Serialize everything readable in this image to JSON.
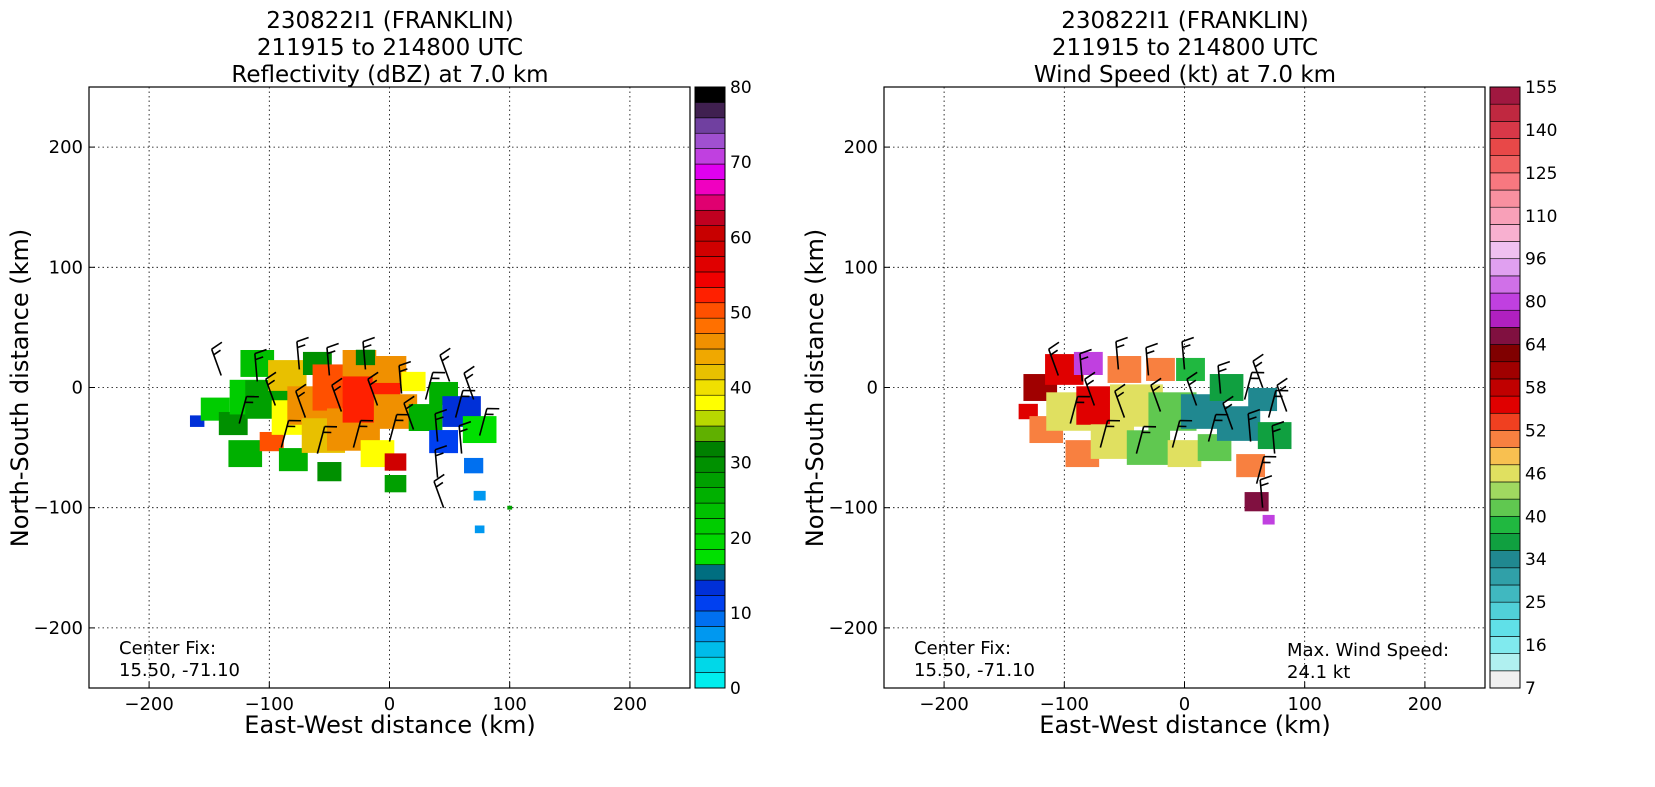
{
  "chart_data": [
    {
      "type": "heatmap",
      "title": [
        "230822I1 (FRANKLIN)",
        "211915 to 214800 UTC",
        "Reflectivity (dBZ) at 7.0 km"
      ],
      "xlabel": "East-West distance (km)",
      "ylabel": "North-South distance (km)",
      "xlim": [
        -250,
        250
      ],
      "ylim": [
        -250,
        250
      ],
      "xticks": [
        "−200",
        "−100",
        "0",
        "100",
        "200"
      ],
      "xtick_values": [
        -200,
        -100,
        0,
        100,
        200
      ],
      "yticks": [
        "200",
        "100",
        "0",
        "−100",
        "−200"
      ],
      "ytick_values": [
        200,
        100,
        0,
        -100,
        -200
      ],
      "grid": true,
      "annotation": [
        "Center Fix:",
        "15.50, -71.10"
      ],
      "colorbar": {
        "label_values": [
          "0",
          "10",
          "20",
          "30",
          "40",
          "50",
          "60",
          "70",
          "80"
        ],
        "colors": [
          "#00eeee",
          "#00d8e8",
          "#00bcea",
          "#0098f0",
          "#0070f0",
          "#0040f0",
          "#0030d8",
          "#006e80",
          "#00e000",
          "#00d800",
          "#00cc00",
          "#00c000",
          "#00b000",
          "#00a000",
          "#009000",
          "#008000",
          "#60b000",
          "#b8d800",
          "#ffff00",
          "#f0e000",
          "#e8c000",
          "#f0a800",
          "#f09000",
          "#ff7000",
          "#ff5000",
          "#ff2000",
          "#f00000",
          "#e00000",
          "#d00000",
          "#c80000",
          "#c00020",
          "#e00070",
          "#f000c0",
          "#e000f0",
          "#c040e0",
          "#a050d0",
          "#7040a0",
          "#402050",
          "#000000"
        ]
      },
      "cells": [
        {
          "x": -160,
          "y": -28,
          "r": 6,
          "v": 6
        },
        {
          "x": -145,
          "y": -18,
          "r": 12,
          "v": 10
        },
        {
          "x": -130,
          "y": -30,
          "r": 12,
          "v": 14
        },
        {
          "x": -120,
          "y": -55,
          "r": 14,
          "v": 12
        },
        {
          "x": -115,
          "y": -8,
          "r": 18,
          "v": 10
        },
        {
          "x": -110,
          "y": 20,
          "r": 14,
          "v": 11
        },
        {
          "x": -100,
          "y": -10,
          "r": 20,
          "v": 13
        },
        {
          "x": -98,
          "y": -45,
          "r": 10,
          "v": 24
        },
        {
          "x": -85,
          "y": 10,
          "r": 16,
          "v": 20
        },
        {
          "x": -80,
          "y": -25,
          "r": 18,
          "v": 18
        },
        {
          "x": -80,
          "y": -60,
          "r": 12,
          "v": 12
        },
        {
          "x": -65,
          "y": -15,
          "r": 20,
          "v": 22
        },
        {
          "x": -60,
          "y": 20,
          "r": 12,
          "v": 14
        },
        {
          "x": -55,
          "y": -40,
          "r": 18,
          "v": 20
        },
        {
          "x": -50,
          "y": -70,
          "r": 10,
          "v": 14
        },
        {
          "x": -40,
          "y": 0,
          "r": 24,
          "v": 24
        },
        {
          "x": -30,
          "y": -35,
          "r": 22,
          "v": 22
        },
        {
          "x": -25,
          "y": 20,
          "r": 14,
          "v": 22
        },
        {
          "x": -15,
          "y": -10,
          "r": 24,
          "v": 25
        },
        {
          "x": -10,
          "y": -55,
          "r": 14,
          "v": 18
        },
        {
          "x": 0,
          "y": 15,
          "r": 14,
          "v": 22
        },
        {
          "x": 5,
          "y": -20,
          "r": 18,
          "v": 22
        },
        {
          "x": 5,
          "y": -62,
          "r": 9,
          "v": 28
        },
        {
          "x": 5,
          "y": -80,
          "r": 9,
          "v": 13
        },
        {
          "x": -20,
          "y": 25,
          "r": 8,
          "v": 15
        },
        {
          "x": 20,
          "y": 5,
          "r": 10,
          "v": 18
        },
        {
          "x": 30,
          "y": -25,
          "r": 14,
          "v": 12
        },
        {
          "x": 45,
          "y": -5,
          "r": 12,
          "v": 12
        },
        {
          "x": 60,
          "y": -20,
          "r": 16,
          "v": 6
        },
        {
          "x": 75,
          "y": -35,
          "r": 14,
          "v": 8
        },
        {
          "x": 45,
          "y": -45,
          "r": 12,
          "v": 5
        },
        {
          "x": 70,
          "y": -65,
          "r": 8,
          "v": 4
        },
        {
          "x": 75,
          "y": -90,
          "r": 5,
          "v": 3
        },
        {
          "x": 75,
          "y": -118,
          "r": 4,
          "v": 3
        },
        {
          "x": 100,
          "y": -100,
          "r": 2,
          "v": 13
        }
      ],
      "barbs": [
        {
          "x": -140,
          "y": 10
        },
        {
          "x": -125,
          "y": -30
        },
        {
          "x": -110,
          "y": 5
        },
        {
          "x": -95,
          "y": -15
        },
        {
          "x": -90,
          "y": -50
        },
        {
          "x": -75,
          "y": 15
        },
        {
          "x": -70,
          "y": -25
        },
        {
          "x": -60,
          "y": -55
        },
        {
          "x": -50,
          "y": 10
        },
        {
          "x": -40,
          "y": -20
        },
        {
          "x": -30,
          "y": -50
        },
        {
          "x": -20,
          "y": 15
        },
        {
          "x": -10,
          "y": -15
        },
        {
          "x": 0,
          "y": -45
        },
        {
          "x": 10,
          "y": -5
        },
        {
          "x": 20,
          "y": -35
        },
        {
          "x": 30,
          "y": -10
        },
        {
          "x": 40,
          "y": -45
        },
        {
          "x": 50,
          "y": 5
        },
        {
          "x": 55,
          "y": -25
        },
        {
          "x": 60,
          "y": -55
        },
        {
          "x": 70,
          "y": -10
        },
        {
          "x": 75,
          "y": -40
        },
        {
          "x": 40,
          "y": -75
        },
        {
          "x": 45,
          "y": -100
        }
      ]
    },
    {
      "type": "heatmap",
      "title": [
        "230822I1 (FRANKLIN)",
        "211915 to 214800 UTC",
        "Wind Speed (kt) at 7.0 km"
      ],
      "xlabel": "East-West distance (km)",
      "ylabel": "North-South distance (km)",
      "xlim": [
        -250,
        250
      ],
      "ylim": [
        -250,
        250
      ],
      "xticks": [
        "−200",
        "−100",
        "0",
        "100",
        "200"
      ],
      "xtick_values": [
        -200,
        -100,
        0,
        100,
        200
      ],
      "yticks": [
        "200",
        "100",
        "0",
        "−100",
        "−200"
      ],
      "ytick_values": [
        200,
        100,
        0,
        -100,
        -200
      ],
      "grid": true,
      "annotation": [
        "Center Fix:",
        "15.50, -71.10"
      ],
      "annotation2": [
        "Max. Wind Speed:",
        "24.1 kt"
      ],
      "colorbar": {
        "label_values": [
          "7",
          "16",
          "25",
          "34",
          "40",
          "46",
          "52",
          "58",
          "64",
          "80",
          "96",
          "110",
          "125",
          "140",
          "155"
        ],
        "colors": [
          "#f0f0f0",
          "#b0f0f0",
          "#80eaee",
          "#60e0e8",
          "#50d0d8",
          "#40b8c0",
          "#30a0a8",
          "#208890",
          "#10a040",
          "#20b840",
          "#60c850",
          "#a0d860",
          "#e0e060",
          "#f8c050",
          "#f88040",
          "#f04020",
          "#e00000",
          "#c00000",
          "#a00000",
          "#800000",
          "#801040",
          "#b020c0",
          "#c040e0",
          "#d070e8",
          "#e0a0f0",
          "#f0c0f0",
          "#f8b0d0",
          "#f8a0b8",
          "#f890a0",
          "#f87880",
          "#f06060",
          "#e84848",
          "#d83848",
          "#c02840",
          "#a01840"
        ]
      },
      "cells": [
        {
          "x": -130,
          "y": -20,
          "r": 8,
          "v": 16
        },
        {
          "x": -120,
          "y": 0,
          "r": 14,
          "v": 18
        },
        {
          "x": -115,
          "y": -35,
          "r": 14,
          "v": 14
        },
        {
          "x": -100,
          "y": 15,
          "r": 16,
          "v": 16
        },
        {
          "x": -95,
          "y": -20,
          "r": 20,
          "v": 12
        },
        {
          "x": -85,
          "y": -55,
          "r": 14,
          "v": 14
        },
        {
          "x": -80,
          "y": 20,
          "r": 12,
          "v": 22
        },
        {
          "x": -70,
          "y": -15,
          "r": 20,
          "v": 16
        },
        {
          "x": -60,
          "y": -45,
          "r": 18,
          "v": 12
        },
        {
          "x": -50,
          "y": 15,
          "r": 14,
          "v": 14
        },
        {
          "x": -40,
          "y": -15,
          "r": 22,
          "v": 12
        },
        {
          "x": -30,
          "y": -50,
          "r": 18,
          "v": 10
        },
        {
          "x": -20,
          "y": 15,
          "r": 12,
          "v": 14
        },
        {
          "x": -10,
          "y": -20,
          "r": 20,
          "v": 10
        },
        {
          "x": 0,
          "y": -55,
          "r": 14,
          "v": 12
        },
        {
          "x": 5,
          "y": 15,
          "r": 12,
          "v": 9
        },
        {
          "x": 15,
          "y": -20,
          "r": 18,
          "v": 7
        },
        {
          "x": 25,
          "y": -50,
          "r": 14,
          "v": 10
        },
        {
          "x": 35,
          "y": 0,
          "r": 14,
          "v": 8
        },
        {
          "x": 45,
          "y": -30,
          "r": 18,
          "v": 7
        },
        {
          "x": 55,
          "y": -65,
          "r": 12,
          "v": 14
        },
        {
          "x": 65,
          "y": -10,
          "r": 12,
          "v": 7
        },
        {
          "x": 75,
          "y": -40,
          "r": 14,
          "v": 8
        },
        {
          "x": 60,
          "y": -95,
          "r": 10,
          "v": 20
        },
        {
          "x": 70,
          "y": -110,
          "r": 5,
          "v": 22
        }
      ],
      "barbs": [
        {
          "x": -105,
          "y": 10
        },
        {
          "x": -95,
          "y": -30
        },
        {
          "x": -85,
          "y": 5
        },
        {
          "x": -75,
          "y": -15
        },
        {
          "x": -70,
          "y": -50
        },
        {
          "x": -55,
          "y": 15
        },
        {
          "x": -50,
          "y": -25
        },
        {
          "x": -40,
          "y": -55
        },
        {
          "x": -30,
          "y": 10
        },
        {
          "x": -20,
          "y": -20
        },
        {
          "x": -10,
          "y": -50
        },
        {
          "x": 0,
          "y": 15
        },
        {
          "x": 10,
          "y": -15
        },
        {
          "x": 20,
          "y": -45
        },
        {
          "x": 30,
          "y": -5
        },
        {
          "x": 40,
          "y": -35
        },
        {
          "x": 50,
          "y": -10
        },
        {
          "x": 55,
          "y": -45
        },
        {
          "x": 65,
          "y": 0
        },
        {
          "x": 70,
          "y": -25
        },
        {
          "x": 75,
          "y": -55
        },
        {
          "x": 85,
          "y": -20
        },
        {
          "x": 60,
          "y": -80
        },
        {
          "x": 65,
          "y": -100
        }
      ]
    }
  ]
}
